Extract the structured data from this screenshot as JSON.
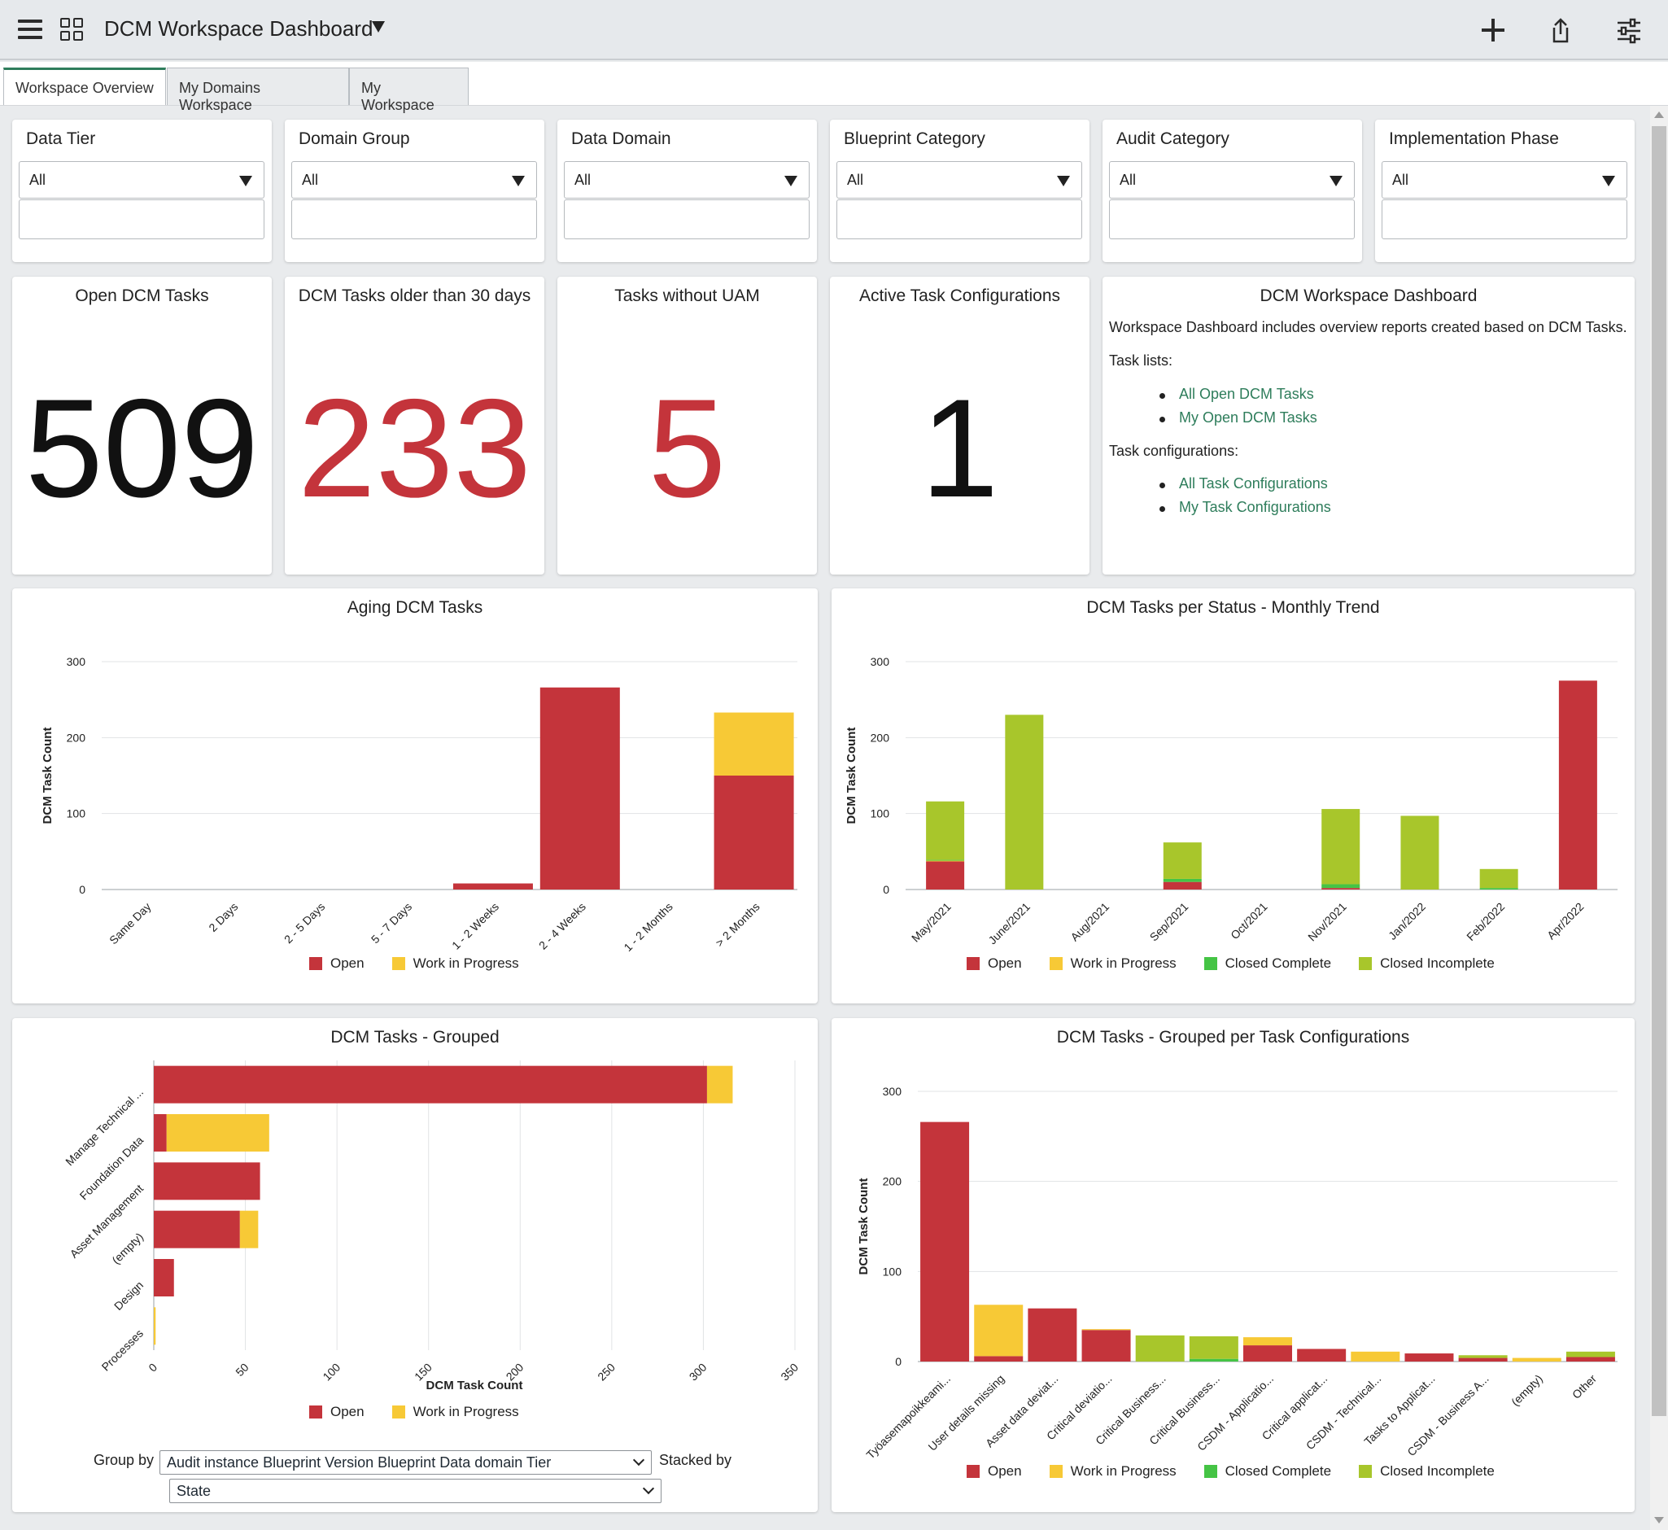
{
  "header": {
    "title": "DCM Workspace Dashboard"
  },
  "tabs": [
    {
      "label": "Workspace Overview",
      "active": true
    },
    {
      "label": "My Domains Workspace",
      "active": false
    },
    {
      "label": "My Workspace",
      "active": false
    }
  ],
  "filters": [
    {
      "label": "Data Tier",
      "value": "All"
    },
    {
      "label": "Domain Group",
      "value": "All"
    },
    {
      "label": "Data Domain",
      "value": "All"
    },
    {
      "label": "Blueprint Category",
      "value": "All"
    },
    {
      "label": "Audit Category",
      "value": "All"
    },
    {
      "label": "Implementation Phase",
      "value": "All"
    }
  ],
  "scorecards": [
    {
      "title": "Open DCM Tasks",
      "value": "509",
      "color": "#111111"
    },
    {
      "title": "DCM Tasks older than 30 days",
      "value": "233",
      "color": "#c4343b"
    },
    {
      "title": "Tasks without UAM",
      "value": "5",
      "color": "#c4343b"
    },
    {
      "title": "Active Task Configurations",
      "value": "1",
      "color": "#111111"
    }
  ],
  "info": {
    "title": "DCM Workspace Dashboard",
    "description": "Workspace Dashboard includes overview reports created based on DCM Tasks.",
    "task_lists_label": "Task lists:",
    "task_list_links": [
      "All Open DCM Tasks",
      "My Open DCM Tasks"
    ],
    "task_config_label": "Task configurations:",
    "task_config_links": [
      "All Task Configurations",
      "My Task Configurations"
    ]
  },
  "colors": {
    "open": "#c4343b",
    "wip": "#f7c936",
    "closed_complete": "#45c445",
    "closed_incomplete": "#a8c62b",
    "link": "#2e7d5b"
  },
  "legend_labels": {
    "open": "Open",
    "wip": "Work in Progress",
    "closed_complete": "Closed Complete",
    "closed_incomplete": "Closed Incomplete"
  },
  "group_controls": {
    "group_by_label": "Group by",
    "group_by_value": "Audit instance Blueprint Version Blueprint Data domain Tier",
    "stacked_by_label": "Stacked by",
    "stacked_by_value": "State"
  },
  "chart_data": [
    {
      "type": "bar",
      "title": "Aging DCM Tasks",
      "ylabel": "DCM Task Count",
      "ylim": [
        0,
        300
      ],
      "yticks": [
        0,
        100,
        200,
        300
      ],
      "grid": true,
      "legend": "bottom",
      "categories": [
        "Same Day",
        "2 Days",
        "2 - 5 Days",
        "5 - 7 Days",
        "1 - 2 Weeks",
        "2 - 4 Weeks",
        "1 - 2 Months",
        "> 2 Months"
      ],
      "series": [
        {
          "name": "Open",
          "values": [
            0,
            0,
            0,
            0,
            8,
            266,
            0,
            150
          ]
        },
        {
          "name": "Work in Progress",
          "values": [
            0,
            0,
            0,
            0,
            0,
            0,
            0,
            83
          ]
        }
      ]
    },
    {
      "type": "bar",
      "title": "DCM Tasks per Status - Monthly Trend",
      "ylabel": "DCM Task Count",
      "ylim": [
        0,
        300
      ],
      "yticks": [
        0,
        100,
        200,
        300
      ],
      "grid": true,
      "legend": "bottom",
      "categories": [
        "May/2021",
        "June/2021",
        "Aug/2021",
        "Sep/2021",
        "Oct/2021",
        "Nov/2021",
        "Jan/2022",
        "Feb/2022",
        "Apr/2022"
      ],
      "series": [
        {
          "name": "Open",
          "values": [
            37,
            0,
            0,
            10,
            0,
            2,
            0,
            0,
            275
          ]
        },
        {
          "name": "Work in Progress",
          "values": [
            1,
            0,
            0,
            0,
            0,
            0,
            0,
            0,
            0
          ]
        },
        {
          "name": "Closed Complete",
          "values": [
            1,
            0,
            0,
            4,
            0,
            5,
            0,
            2,
            0
          ]
        },
        {
          "name": "Closed Incomplete",
          "values": [
            77,
            230,
            0,
            48,
            0,
            99,
            97,
            25,
            0
          ]
        }
      ]
    },
    {
      "type": "bar",
      "orientation": "horizontal",
      "title": "DCM Tasks - Grouped",
      "xlabel": "DCM Task Count",
      "xlim": [
        0,
        350
      ],
      "xticks": [
        0,
        50,
        100,
        150,
        200,
        250,
        300,
        350
      ],
      "grid": true,
      "legend": "bottom",
      "categories": [
        "Manage Technical ...",
        "Foundation Data",
        "Asset Management",
        "(empty)",
        "Design",
        "Processes"
      ],
      "series": [
        {
          "name": "Open",
          "values": [
            302,
            7,
            58,
            47,
            11,
            0
          ]
        },
        {
          "name": "Work in Progress",
          "values": [
            14,
            56,
            0,
            10,
            0,
            1
          ]
        }
      ]
    },
    {
      "type": "bar",
      "title": "DCM Tasks - Grouped per Task Configurations",
      "ylabel": "DCM Task Count",
      "ylim": [
        0,
        300
      ],
      "yticks": [
        0,
        100,
        200,
        300
      ],
      "grid": true,
      "legend": "bottom",
      "categories": [
        "Työasemapoikkeami...",
        "User details missing",
        "Asset data deviat...",
        "Critical deviatio...",
        "Critical Business...",
        "Critical Business...",
        "CSDM - Applicatio...",
        "Critical applicat...",
        "CSDM - Technical...",
        "Tasks to Applicat...",
        "CSDM - Business A...",
        "(empty)",
        "Other"
      ],
      "series": [
        {
          "name": "Open",
          "values": [
            266,
            6,
            59,
            35,
            0,
            0,
            18,
            14,
            0,
            9,
            4,
            0,
            5
          ]
        },
        {
          "name": "Work in Progress",
          "values": [
            0,
            57,
            0,
            1,
            0,
            0,
            9,
            0,
            11,
            0,
            0,
            4,
            0
          ]
        },
        {
          "name": "Closed Complete",
          "values": [
            0,
            0,
            0,
            0,
            0,
            3,
            0,
            0,
            0,
            0,
            0,
            0,
            0
          ]
        },
        {
          "name": "Closed Incomplete",
          "values": [
            0,
            0,
            0,
            0,
            29,
            25,
            0,
            0,
            0,
            0,
            3,
            0,
            6
          ]
        }
      ]
    }
  ]
}
